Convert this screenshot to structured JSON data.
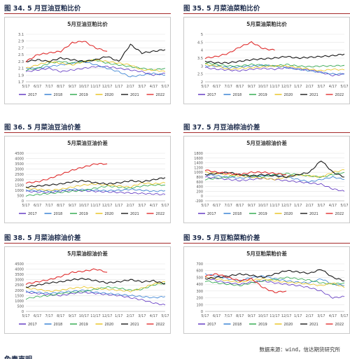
{
  "source_note": "数据来源：wind，信达期货研究所",
  "footer_heading": "免责声明",
  "legend_colors": {
    "2017": "#5b2fc0",
    "2018": "#2e7bd1",
    "2019": "#2aa84a",
    "2020": "#e8c21a",
    "2021": "#1a1a1a",
    "2022": "#e03030"
  },
  "x_ticks": [
    "5/17",
    "6/17",
    "7/17",
    "8/17",
    "9/17",
    "10/17",
    "11/17",
    "12/17",
    "1/17",
    "2/17",
    "3/17",
    "4/17",
    "5/17"
  ],
  "charts": [
    {
      "fig_label": "图 34. 5 月豆油豆粕比价",
      "chart_title": "5月豆油豆粕比价",
      "chart_data": {
        "type": "line",
        "title": "5月豆油豆粕比价",
        "ylim": [
          1.7,
          3.1
        ],
        "yticks": [
          1.7,
          1.9,
          2.1,
          2.3,
          2.5,
          2.7,
          2.9,
          3.1
        ],
        "x": [
          "5/17",
          "6/17",
          "7/17",
          "8/17",
          "9/17",
          "10/17",
          "11/17",
          "12/17",
          "1/17",
          "2/17",
          "3/17",
          "4/17",
          "5/17"
        ],
        "series": [
          {
            "name": "2017",
            "values": [
              2.0,
              2.05,
              2.1,
              2.0,
              2.05,
              2.1,
              2.15,
              2.15,
              2.1,
              2.05,
              2.0,
              1.9,
              1.95
            ]
          },
          {
            "name": "2018",
            "values": [
              2.1,
              2.1,
              2.15,
              2.2,
              2.25,
              2.3,
              2.2,
              2.1,
              2.0,
              1.85,
              1.9,
              1.95,
              1.9
            ]
          },
          {
            "name": "2019",
            "values": [
              2.05,
              2.1,
              2.25,
              2.3,
              2.25,
              2.3,
              2.35,
              2.25,
              2.2,
              2.15,
              2.1,
              2.05,
              2.1
            ]
          },
          {
            "name": "2020",
            "values": [
              2.1,
              2.2,
              2.3,
              2.25,
              2.2,
              2.3,
              2.35,
              2.3,
              2.25,
              2.2,
              2.05,
              2.05,
              2.0
            ]
          },
          {
            "name": "2021",
            "values": [
              2.3,
              2.35,
              2.3,
              2.4,
              2.35,
              2.3,
              2.35,
              2.45,
              2.3,
              2.8,
              2.55,
              2.6,
              2.65
            ]
          },
          {
            "name": "2022",
            "values": [
              2.3,
              2.5,
              2.55,
              2.6,
              2.85,
              2.9,
              2.7,
              2.6,
              null,
              null,
              null,
              null,
              null
            ]
          }
        ]
      }
    },
    {
      "fig_label": "图 35. 5 月菜油菜粕比价",
      "chart_title": "5月菜油菜粕比价",
      "chart_data": {
        "type": "line",
        "title": "5月菜油菜粕比价",
        "ylim": [
          2,
          5
        ],
        "yticks": [
          2,
          2.5,
          3,
          3.5,
          4,
          4.5,
          5
        ],
        "x": [
          "5/17",
          "6/17",
          "7/17",
          "8/17",
          "9/17",
          "10/17",
          "11/17",
          "12/17",
          "1/17",
          "2/17",
          "3/17",
          "4/17",
          "5/17"
        ],
        "series": [
          {
            "name": "2017",
            "values": [
              2.9,
              2.8,
              2.75,
              2.7,
              2.8,
              2.85,
              2.8,
              2.9,
              2.8,
              2.75,
              2.6,
              2.4,
              2.5
            ]
          },
          {
            "name": "2018",
            "values": [
              3.0,
              3.0,
              2.9,
              2.95,
              3.0,
              3.05,
              3.0,
              2.9,
              2.8,
              2.7,
              2.6,
              2.5,
              2.5
            ]
          },
          {
            "name": "2019",
            "values": [
              3.2,
              3.1,
              3.0,
              3.0,
              3.1,
              3.05,
              3.0,
              3.1,
              3.0,
              2.95,
              3.0,
              3.0,
              3.05
            ]
          },
          {
            "name": "2020",
            "values": [
              3.1,
              3.0,
              2.8,
              2.85,
              2.9,
              2.95,
              3.0,
              3.0,
              2.9,
              2.8,
              2.7,
              2.8,
              2.75
            ]
          },
          {
            "name": "2021",
            "values": [
              3.3,
              3.2,
              3.2,
              3.3,
              3.4,
              3.45,
              3.5,
              3.6,
              3.5,
              3.55,
              3.6,
              3.65,
              3.75
            ]
          },
          {
            "name": "2022",
            "values": [
              3.5,
              3.6,
              3.8,
              4.2,
              4.5,
              4.1,
              4.0,
              null,
              null,
              null,
              null,
              null,
              null
            ]
          }
        ]
      }
    },
    {
      "fig_label": "图 36. 5 月菜油豆油价差",
      "chart_title": "5月菜油豆油价差",
      "chart_data": {
        "type": "line",
        "title": "5月菜油豆油价差",
        "ylim": [
          0,
          4500
        ],
        "yticks": [
          0,
          500,
          1000,
          1500,
          2000,
          2500,
          3000,
          3500,
          4000,
          4500
        ],
        "x": [
          "5/17",
          "6/17",
          "7/17",
          "8/17",
          "9/17",
          "10/17",
          "11/17",
          "12/17",
          "1/17",
          "2/17",
          "3/17",
          "4/17",
          "5/17"
        ],
        "series": [
          {
            "name": "2017",
            "values": [
              900,
              850,
              800,
              900,
              1000,
              950,
              900,
              850,
              800,
              750,
              700,
              650,
              600
            ]
          },
          {
            "name": "2018",
            "values": [
              1000,
              950,
              900,
              1000,
              1100,
              1050,
              1000,
              950,
              1000,
              1100,
              1000,
              900,
              950
            ]
          },
          {
            "name": "2019",
            "values": [
              500,
              600,
              700,
              800,
              900,
              1000,
              1200,
              1400,
              1300,
              1200,
              1400,
              1500,
              1500
            ]
          },
          {
            "name": "2020",
            "values": [
              1200,
              1100,
              1000,
              1100,
              1300,
              1500,
              1600,
              1500,
              1400,
              1300,
              1700,
              1600,
              1700
            ]
          },
          {
            "name": "2021",
            "values": [
              1300,
              1400,
              1500,
              1600,
              1800,
              1900,
              1700,
              1600,
              1700,
              1900,
              1800,
              2000,
              2200
            ]
          },
          {
            "name": "2022",
            "values": [
              1700,
              1800,
              2100,
              2500,
              2900,
              3200,
              3500,
              3500,
              null,
              null,
              null,
              null,
              null
            ]
          }
        ]
      }
    },
    {
      "fig_label": "图 37. 5 月豆油棕油价差",
      "chart_title": "5月豆油棕油价差",
      "chart_data": {
        "type": "line",
        "title": "5月豆油棕油价差",
        "ylim": [
          -200,
          1800
        ],
        "yticks": [
          -200,
          0,
          200,
          400,
          600,
          800,
          1000,
          1200,
          1400,
          1600,
          1800
        ],
        "x": [
          "5/17",
          "6/17",
          "7/17",
          "8/17",
          "9/17",
          "10/17",
          "11/17",
          "12/17",
          "1/17",
          "2/17",
          "3/17",
          "4/17",
          "5/17"
        ],
        "series": [
          {
            "name": "2017",
            "values": [
              800,
              750,
              700,
              650,
              700,
              750,
              700,
              650,
              600,
              550,
              500,
              300,
              200
            ]
          },
          {
            "name": "2018",
            "values": [
              900,
              850,
              800,
              750,
              800,
              850,
              900,
              800,
              700,
              600,
              700,
              800,
              700
            ]
          },
          {
            "name": "2019",
            "values": [
              700,
              750,
              800,
              900,
              850,
              800,
              900,
              950,
              900,
              850,
              800,
              900,
              1000
            ]
          },
          {
            "name": "2020",
            "values": [
              1000,
              950,
              900,
              850,
              800,
              750,
              700,
              800,
              900,
              850,
              800,
              1000,
              1100
            ]
          },
          {
            "name": "2021",
            "values": [
              900,
              950,
              1000,
              900,
              850,
              900,
              850,
              800,
              900,
              1000,
              1500,
              1000,
              800
            ]
          },
          {
            "name": "2022",
            "values": [
              1100,
              1000,
              950,
              900,
              1000,
              1000,
              950,
              900,
              null,
              null,
              null,
              null,
              null
            ]
          }
        ]
      }
    },
    {
      "fig_label": "图 38. 5 月菜油棕油价差",
      "chart_title": "5月菜油棕油价差",
      "chart_data": {
        "type": "line",
        "title": "5月菜油棕油价差",
        "ylim": [
          0,
          4500
        ],
        "yticks": [
          0,
          500,
          1000,
          1500,
          2000,
          2500,
          3000,
          3500,
          4000,
          4500
        ],
        "x": [
          "5/17",
          "6/17",
          "7/17",
          "8/17",
          "9/17",
          "10/17",
          "11/17",
          "12/17",
          "1/17",
          "2/17",
          "3/17",
          "4/17",
          "5/17"
        ],
        "series": [
          {
            "name": "2017",
            "values": [
              1800,
              1700,
              1600,
              1500,
              1700,
              1800,
              1700,
              1600,
              1500,
              1300,
              1100,
              800,
              600
            ]
          },
          {
            "name": "2018",
            "values": [
              1900,
              1800,
              1700,
              1800,
              1900,
              2000,
              1800,
              1700,
              1600,
              1500,
              1400,
              1300,
              1400
            ]
          },
          {
            "name": "2019",
            "values": [
              1200,
              1400,
              1500,
              1700,
              1800,
              1900,
              2100,
              2300,
              2200,
              2000,
              2100,
              2500,
              2700
            ]
          },
          {
            "name": "2020",
            "values": [
              2200,
              2100,
              1900,
              2000,
              2200,
              2300,
              2200,
              2100,
              2000,
              1900,
              2200,
              2600,
              2800
            ]
          },
          {
            "name": "2021",
            "values": [
              2300,
              2500,
              2700,
              2800,
              3000,
              3100,
              2900,
              2700,
              2800,
              3000,
              2800,
              2900,
              2600
            ]
          },
          {
            "name": "2022",
            "values": [
              2600,
              2800,
              3000,
              3300,
              3700,
              3800,
              4000,
              3700,
              null,
              null,
              null,
              null,
              null
            ]
          }
        ]
      }
    },
    {
      "fig_label": "图 39. 5 月豆粕菜粕价差",
      "chart_title": "5月豆粕菜粕价差",
      "chart_data": {
        "type": "line",
        "title": "5月豆粕菜粕价差",
        "ylim": [
          0,
          700
        ],
        "yticks": [
          0,
          100,
          200,
          300,
          400,
          500,
          600,
          700
        ],
        "x": [
          "5/17",
          "6/17",
          "7/17",
          "8/17",
          "9/17",
          "10/17",
          "11/17",
          "12/17",
          "1/17",
          "2/17",
          "3/17",
          "4/17",
          "5/17"
        ],
        "series": [
          {
            "name": "2017",
            "values": [
              500,
              450,
              420,
              400,
              430,
              450,
              420,
              400,
              380,
              350,
              300,
              200,
              220
            ]
          },
          {
            "name": "2018",
            "values": [
              550,
              520,
              480,
              450,
              500,
              520,
              480,
              450,
              430,
              420,
              480,
              400,
              380
            ]
          },
          {
            "name": "2019",
            "values": [
              450,
              420,
              400,
              380,
              420,
              450,
              470,
              500,
              480,
              460,
              420,
              400,
              420
            ]
          },
          {
            "name": "2020",
            "values": [
              500,
              480,
              450,
              430,
              460,
              480,
              450,
              430,
              420,
              400,
              380,
              420,
              350
            ]
          },
          {
            "name": "2021",
            "values": [
              480,
              500,
              520,
              550,
              530,
              500,
              550,
              600,
              580,
              560,
              620,
              500,
              450
            ]
          },
          {
            "name": "2022",
            "values": [
              520,
              550,
              500,
              450,
              480,
              350,
              280,
              300,
              null,
              null,
              null,
              null,
              null
            ]
          }
        ]
      }
    }
  ]
}
